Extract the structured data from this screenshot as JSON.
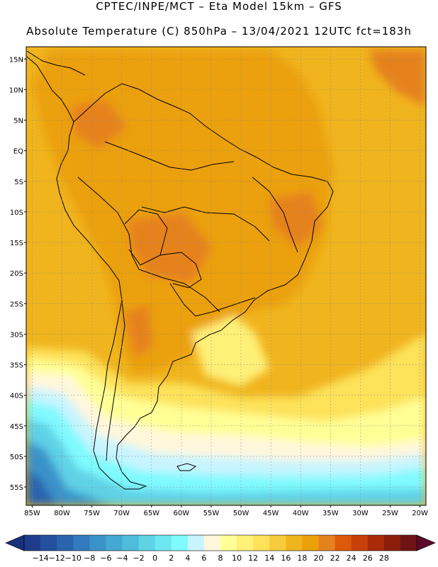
{
  "header": {
    "title_line1": "CPTEC/INPE/MCT –  Eta Model 15km – GFS",
    "title_line2": "Absolute Temperature (C) 850hPa – 13/04/2021 12UTC fct=183h"
  },
  "map": {
    "lon_range": [
      -86,
      -19
    ],
    "lat_range": [
      -58,
      17
    ],
    "lat_ticks": [
      "15N",
      "10N",
      "5N",
      "EQ",
      "5S",
      "10S",
      "15S",
      "20S",
      "25S",
      "30S",
      "35S",
      "40S",
      "45S",
      "50S",
      "55S"
    ],
    "lat_tick_values": [
      15,
      10,
      5,
      0,
      -5,
      -10,
      -15,
      -20,
      -25,
      -30,
      -35,
      -40,
      -45,
      -50,
      -55
    ],
    "lon_ticks": [
      "85W",
      "80W",
      "75W",
      "70W",
      "65W",
      "60W",
      "55W",
      "50W",
      "45W",
      "40W",
      "35W",
      "30W",
      "25W",
      "20W"
    ],
    "lon_tick_values": [
      -85,
      -80,
      -75,
      -70,
      -65,
      -60,
      -55,
      -50,
      -45,
      -40,
      -35,
      -30,
      -25,
      -20
    ],
    "grid": true
  },
  "colorbar": {
    "labels": [
      "-14",
      "-12",
      "-10",
      "-8",
      "-6",
      "-4",
      "-2",
      "0",
      "2",
      "4",
      "6",
      "8",
      "10",
      "12",
      "14",
      "16",
      "18",
      "20",
      "22",
      "24",
      "26",
      "28"
    ],
    "colors": [
      "#1e3c8c",
      "#23509e",
      "#2a64ae",
      "#327abe",
      "#3b92c9",
      "#45a8d2",
      "#4fbcdc",
      "#5fd2e6",
      "#6ee6f0",
      "#7ffaff",
      "#c8f4ff",
      "#fff7dc",
      "#ffff96",
      "#fff078",
      "#fde25a",
      "#f7cc3c",
      "#f0b41e",
      "#eba00a",
      "#e6821e",
      "#dc5a0a",
      "#c8400a",
      "#aa2a0a",
      "#8c1e0a",
      "#6e1414"
    ],
    "under_color": "#16307a",
    "over_color": "#5a0a28"
  }
}
